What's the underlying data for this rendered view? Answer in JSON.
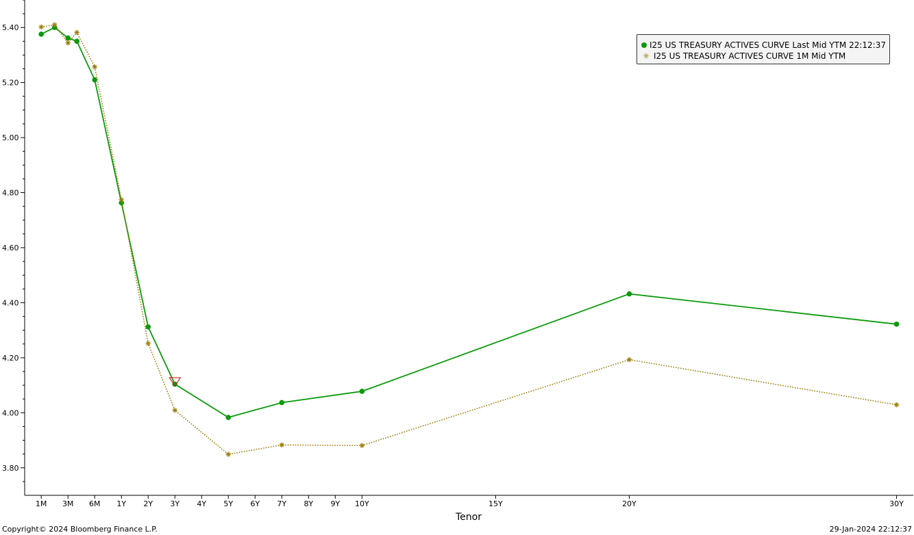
{
  "chart_data": {
    "type": "line",
    "xlabel": "Tenor",
    "ylabel": "",
    "ylim": [
      3.7,
      5.5
    ],
    "yticks": [
      3.8,
      4.0,
      4.2,
      4.4,
      4.6,
      4.8,
      5.0,
      5.2,
      5.4
    ],
    "ytick_labels": [
      "3.80",
      "4.00",
      "4.20",
      "4.40",
      "4.60",
      "4.80",
      "5.00",
      "5.20",
      "5.40"
    ],
    "xlim_years": [
      -0.05,
      30.6
    ],
    "xticks": [
      {
        "label": "1M",
        "years": 0.0833
      },
      {
        "label": "3M",
        "years": 0.25
      },
      {
        "label": "6M",
        "years": 0.5
      },
      {
        "label": "1Y",
        "years": 1
      },
      {
        "label": "2Y",
        "years": 2
      },
      {
        "label": "3Y",
        "years": 3
      },
      {
        "label": "4Y",
        "years": 4
      },
      {
        "label": "5Y",
        "years": 5
      },
      {
        "label": "6Y",
        "years": 6
      },
      {
        "label": "7Y",
        "years": 7
      },
      {
        "label": "8Y",
        "years": 8
      },
      {
        "label": "9Y",
        "years": 9
      },
      {
        "label": "10Y",
        "years": 10
      },
      {
        "label": "15Y",
        "years": 15
      },
      {
        "label": "20Y",
        "years": 20
      },
      {
        "label": "30Y",
        "years": 30
      }
    ],
    "tenor_scale": [
      [
        0.0833,
        0.0
      ],
      [
        0.25,
        1.0
      ],
      [
        0.5,
        2.0
      ],
      [
        1,
        3.0
      ],
      [
        2,
        4.0
      ],
      [
        3,
        5.0
      ],
      [
        4,
        6.0
      ],
      [
        5,
        7.0
      ],
      [
        6,
        8.0
      ],
      [
        7,
        9.0
      ],
      [
        8,
        10.0
      ],
      [
        9,
        11.0
      ],
      [
        10,
        12.0
      ],
      [
        15,
        17.0
      ],
      [
        20,
        22.0
      ],
      [
        30,
        32.0
      ]
    ],
    "grid": false,
    "legend_position": "top-right",
    "series": [
      {
        "name": "I25 US TREASURY ACTIVES CURVE Last Mid YTM 22:12:37",
        "color": "#0a9a0a",
        "style": "solid",
        "marker": "circle",
        "x": [
          0.0833,
          0.1667,
          0.25,
          0.3333,
          0.5,
          1,
          2,
          3,
          5,
          7,
          10,
          20,
          30
        ],
        "y": [
          5.376,
          5.4,
          5.362,
          5.35,
          5.21,
          4.763,
          4.312,
          4.104,
          3.983,
          4.037,
          4.078,
          4.432,
          4.322
        ]
      },
      {
        "name": "I25 US TREASURY ACTIVES CURVE 1M Mid YTM",
        "color": "#9a7d0a",
        "style": "dotted",
        "marker": "asterisk",
        "x": [
          0.0833,
          0.1667,
          0.25,
          0.3333,
          0.5,
          1,
          2,
          3,
          5,
          7,
          10,
          20,
          30
        ],
        "y": [
          5.402,
          5.41,
          5.344,
          5.382,
          5.257,
          4.774,
          4.252,
          4.009,
          3.849,
          3.883,
          3.881,
          4.193,
          4.029
        ]
      }
    ],
    "annotations": [
      {
        "type": "triangle-down-marker",
        "color": "#d02020",
        "x": 3,
        "y": 4.115
      }
    ]
  },
  "footer": {
    "copyright": "Copyright© 2024 Bloomberg Finance L.P.",
    "timestamp": "29-Jan-2024 22:12:37"
  }
}
